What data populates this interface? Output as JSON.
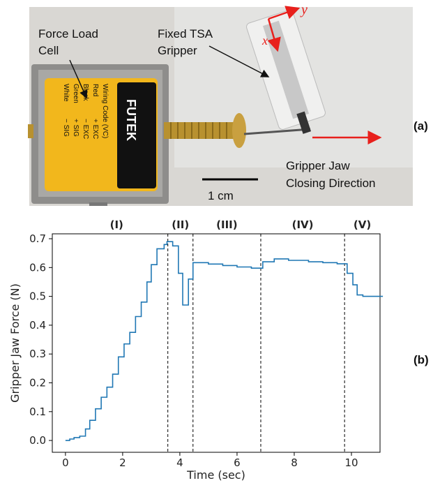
{
  "figure_a": {
    "label": "(a)",
    "load_cell_label": [
      "Force Load",
      "Cell"
    ],
    "gripper_label": [
      "Fixed TSA",
      "Gripper"
    ],
    "direction_label": [
      "Gripper Jaw",
      "Closing Direction"
    ],
    "scale_bar": "1 cm",
    "axis_y": "y",
    "axis_x": "x",
    "device_brand": "FUTEK",
    "device_wiring": [
      "Wiring Code (VC)",
      "Red",
      "+ EXC",
      "Black",
      "− EXC",
      "Green",
      "+ SIG",
      "White",
      "− SIG"
    ]
  },
  "figure_b": {
    "label": "(b)"
  },
  "chart_data": {
    "type": "line",
    "xlabel": "Time (sec)",
    "ylabel": "Gripper Jaw Force (N)",
    "phases": [
      "(I)",
      "(II)",
      "(III)",
      "(IV)",
      "(V)"
    ],
    "vlines": [
      3.58,
      4.46,
      6.83,
      9.76
    ],
    "color": "#1f77b4",
    "x": [
      0,
      0.15,
      0.15,
      0.3,
      0.3,
      0.5,
      0.5,
      0.7,
      0.7,
      0.85,
      0.85,
      1.05,
      1.05,
      1.25,
      1.25,
      1.45,
      1.45,
      1.65,
      1.65,
      1.85,
      1.85,
      2.05,
      2.05,
      2.25,
      2.25,
      2.45,
      2.45,
      2.65,
      2.65,
      2.85,
      2.85,
      3.0,
      3.0,
      3.2,
      3.2,
      3.45,
      3.45,
      3.55,
      3.55,
      3.75,
      3.75,
      3.95,
      3.95,
      4.1,
      4.1,
      4.3,
      4.3,
      4.46,
      4.46,
      5.0,
      5.0,
      5.5,
      5.5,
      6.0,
      6.0,
      6.5,
      6.5,
      6.9,
      6.9,
      7.3,
      7.3,
      7.8,
      7.8,
      8.5,
      8.5,
      9.0,
      9.0,
      9.5,
      9.5,
      9.85,
      9.85,
      10.05,
      10.05,
      10.2,
      10.2,
      10.4,
      10.4,
      11.1
    ],
    "values": [
      0,
      0,
      0.005,
      0.005,
      0.01,
      0.01,
      0.015,
      0.015,
      0.04,
      0.04,
      0.07,
      0.07,
      0.11,
      0.11,
      0.15,
      0.15,
      0.185,
      0.185,
      0.23,
      0.23,
      0.29,
      0.29,
      0.335,
      0.335,
      0.375,
      0.375,
      0.43,
      0.43,
      0.48,
      0.48,
      0.55,
      0.55,
      0.61,
      0.61,
      0.665,
      0.665,
      0.68,
      0.68,
      0.69,
      0.69,
      0.675,
      0.675,
      0.58,
      0.58,
      0.47,
      0.47,
      0.56,
      0.56,
      0.617,
      0.617,
      0.612,
      0.612,
      0.607,
      0.607,
      0.602,
      0.602,
      0.598,
      0.598,
      0.62,
      0.62,
      0.63,
      0.63,
      0.625,
      0.625,
      0.62,
      0.62,
      0.617,
      0.617,
      0.613,
      0.613,
      0.58,
      0.58,
      0.54,
      0.54,
      0.505,
      0.505,
      0.5,
      0.5
    ],
    "xlim": [
      -0.46,
      11.0
    ],
    "ylim": [
      -0.041,
      0.717
    ],
    "xticks": [
      0,
      2,
      4,
      6,
      8,
      10
    ],
    "yticks": [
      {
        "value": 0,
        "label": "0.0"
      },
      0.1,
      0.2,
      0.3,
      0.4,
      0.5,
      0.6,
      0.7
    ]
  }
}
